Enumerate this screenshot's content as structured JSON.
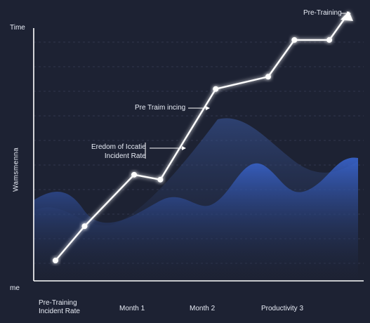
{
  "chart_data": {
    "type": "line",
    "title": "",
    "ylabel": "Wamsmenna",
    "y_axis_top": "Time",
    "y_axis_bottom": "me",
    "x_tick_labels": [
      "Pre-Training\nIncident Rate",
      "Month 1",
      "Month 2",
      "Productivity 3"
    ],
    "series": [
      {
        "values": [
          {
            "x": 0.0,
            "y": 0.0
          },
          {
            "x": 0.1,
            "y": 0.14
          },
          {
            "x": 0.27,
            "y": 0.35
          },
          {
            "x": 0.36,
            "y": 0.33
          },
          {
            "x": 0.55,
            "y": 0.7
          },
          {
            "x": 0.73,
            "y": 0.75
          },
          {
            "x": 0.82,
            "y": 0.9
          },
          {
            "x": 0.94,
            "y": 0.9
          },
          {
            "x": 1.0,
            "y": 1.0
          }
        ]
      }
    ],
    "annotations": [
      {
        "text": "Pre-Training",
        "target_point": 8
      },
      {
        "text": "Pre Traim incing",
        "target_point": 4
      },
      {
        "text": "Eredom of Iccatie\nIncident Rate",
        "target_point": 3
      }
    ],
    "grid": "horizontal-dashed",
    "colors": {
      "background": "#1d2233",
      "line": "#ffffff",
      "glow": "#9fb7ff",
      "wave_back": "#34508f",
      "wave_front": "#2f58b8"
    }
  }
}
